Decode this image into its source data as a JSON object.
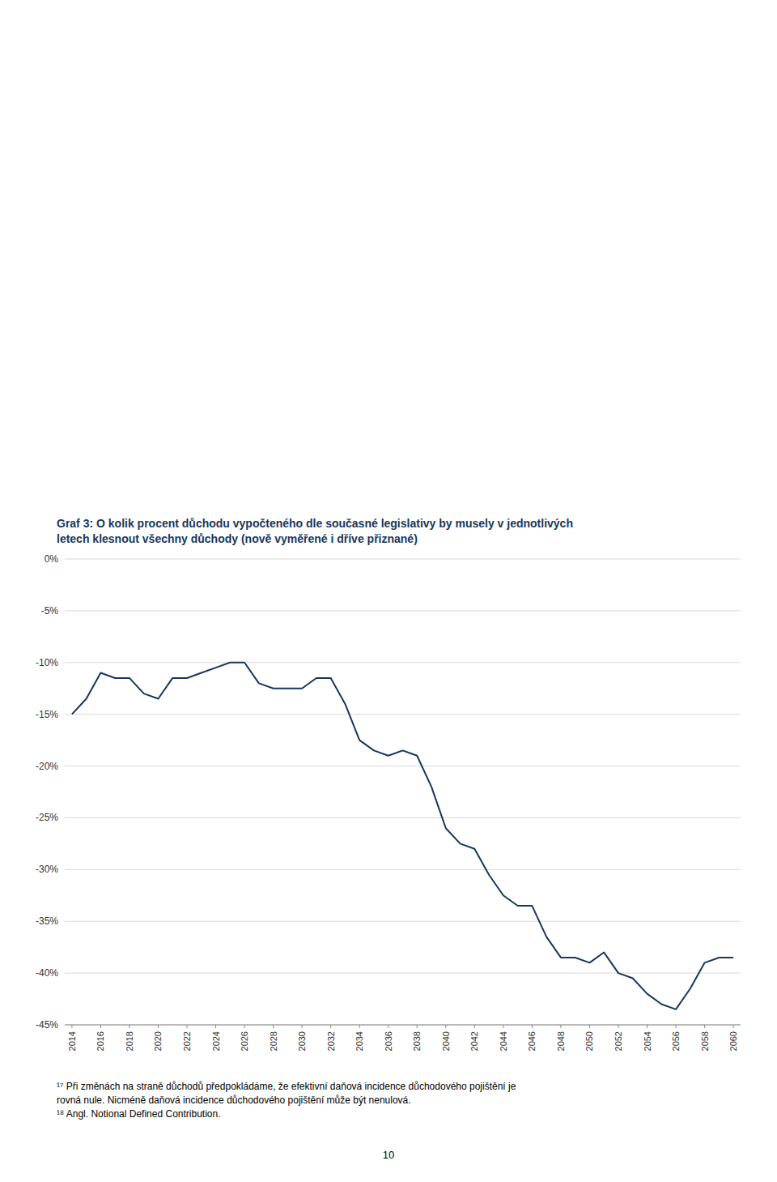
{
  "chart_data": {
    "type": "line",
    "title": "Graf 3: O kolik procent důchodu vypočteného dle současné legislativy by musely v jednotlivých\nletech klesnout všechny důchody (nově vyměřené i dříve přiznané)",
    "annotations": [
      "¹⁷ Při změnách na straně důchodů předpokládáme, že efektivní daňová incidence důchodového pojištění je\nrovná nule. Nicméně daňová incidence důchodového pojištění může být nenulová.\n¹⁸ Angl. Notional Defined Contribution.",
      "10"
    ],
    "x": [
      2014,
      2015,
      2016,
      2017,
      2018,
      2019,
      2020,
      2021,
      2022,
      2023,
      2024,
      2025,
      2026,
      2027,
      2028,
      2029,
      2030,
      2031,
      2032,
      2033,
      2034,
      2035,
      2036,
      2037,
      2038,
      2039,
      2040,
      2041,
      2042,
      2043,
      2044,
      2045,
      2046,
      2047,
      2048,
      2049,
      2050,
      2051,
      2052,
      2053,
      2054,
      2055,
      2056,
      2057,
      2058,
      2059,
      2060
    ],
    "values": [
      -15.0,
      -13.5,
      -11.0,
      -11.5,
      -11.5,
      -13.0,
      -13.5,
      -11.5,
      -11.5,
      -11.0,
      -10.5,
      -10.0,
      -10.0,
      -12.0,
      -12.5,
      -12.5,
      -12.5,
      -11.5,
      -11.5,
      -14.0,
      -17.5,
      -18.5,
      -19.0,
      -18.5,
      -19.0,
      -22.0,
      -26.0,
      -27.5,
      -28.0,
      -30.5,
      -32.5,
      -33.5,
      -33.5,
      -36.5,
      -38.5,
      -38.5,
      -39.0,
      -38.0,
      -40.0,
      -40.5,
      -42.0,
      -43.0,
      -43.5,
      -41.5,
      -39.0,
      -38.5,
      -38.5
    ],
    "color": "#17375E",
    "xlim": [
      2013.5,
      2060.5
    ],
    "xticks": [
      2014,
      2016,
      2018,
      2020,
      2022,
      2024,
      2026,
      2028,
      2030,
      2032,
      2034,
      2036,
      2038,
      2040,
      2042,
      2044,
      2046,
      2048,
      2050,
      2052,
      2054,
      2056,
      2058,
      2060
    ],
    "ylim": [
      -45,
      0
    ],
    "yticks": [
      {
        "value": 0,
        "label": "0%"
      },
      {
        "value": -5,
        "label": "-5%"
      },
      {
        "value": -10,
        "label": "-10%"
      },
      {
        "value": -15,
        "label": "-15%"
      },
      {
        "value": -20,
        "label": "-20%"
      },
      {
        "value": -25,
        "label": "-25%"
      },
      {
        "value": -30,
        "label": "-30%"
      },
      {
        "value": -35,
        "label": "-35%"
      },
      {
        "value": -40,
        "label": "-40%"
      },
      {
        "value": -45,
        "label": "-45%"
      }
    ],
    "grid": true
  }
}
